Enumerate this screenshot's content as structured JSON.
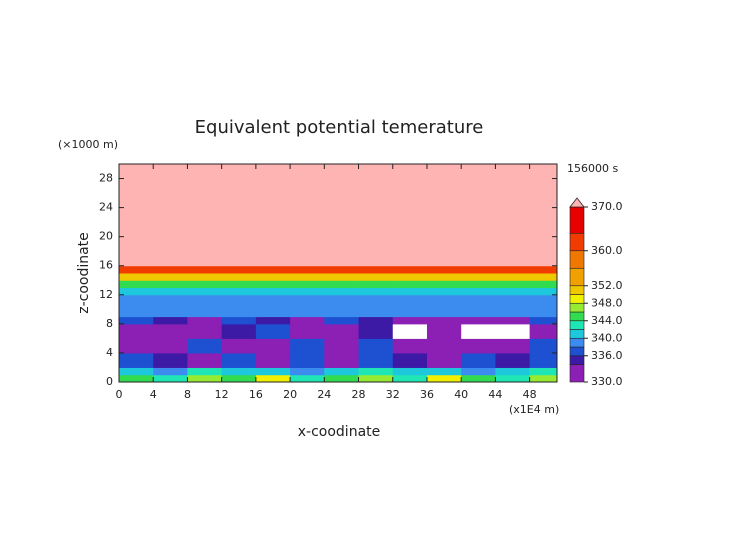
{
  "chart_data": {
    "type": "contour",
    "title": "Equivalent potential temerature",
    "x_label": "x-coodinate",
    "y_label": "z-coodinate",
    "x_unit": "(x1E4 m)",
    "y_unit": "(×1000 m)",
    "time_label": "156000 s",
    "xlim": [
      0,
      51.2
    ],
    "ylim": [
      0,
      30
    ],
    "xticks": [
      0,
      4,
      8,
      12,
      16,
      20,
      24,
      28,
      32,
      36,
      40,
      44,
      48
    ],
    "yticks": [
      0,
      4,
      8,
      12,
      16,
      20,
      24,
      28
    ],
    "field": {
      "x_edges": [
        0,
        4,
        8,
        12,
        16,
        20,
        24,
        28,
        32,
        36,
        40,
        44,
        48,
        51.2
      ],
      "z_edges": [
        0,
        1,
        2,
        4,
        6,
        8,
        9,
        10,
        12,
        13,
        14,
        15,
        16,
        30
      ],
      "values": [
        [
          344,
          342,
          346,
          344,
          348,
          342,
          344,
          346,
          342,
          348,
          344,
          342,
          346
        ],
        [
          340,
          338,
          342,
          340,
          340,
          338,
          340,
          342,
          340,
          340,
          338,
          340,
          342
        ],
        [
          337,
          335,
          333,
          337,
          332,
          336,
          331,
          337,
          335,
          332,
          337,
          334,
          336
        ],
        [
          331,
          333,
          337,
          332,
          331,
          337,
          333,
          336,
          332,
          331,
          333,
          332,
          337
        ],
        [
          333,
          331,
          332,
          335,
          337,
          333,
          331,
          334,
          329,
          331,
          328,
          327,
          333
        ],
        [
          337,
          334,
          333,
          336,
          335,
          333,
          337,
          334,
          333,
          331,
          333,
          332,
          337
        ],
        [
          338,
          339,
          338,
          339,
          338,
          339,
          338,
          338,
          339,
          338,
          339,
          338,
          339
        ],
        [
          339,
          339,
          339,
          339,
          339,
          339,
          339,
          339,
          339,
          339,
          339,
          339,
          339
        ],
        [
          341,
          341,
          341,
          341,
          341,
          341,
          341,
          341,
          341,
          341,
          341,
          341,
          341
        ],
        [
          345,
          345,
          345,
          345,
          345,
          345,
          345,
          345,
          345,
          345,
          345,
          345,
          345
        ],
        [
          351,
          351,
          351,
          351,
          351,
          351,
          351,
          351,
          351,
          351,
          351,
          351,
          351
        ],
        [
          362,
          362,
          362,
          362,
          362,
          362,
          362,
          362,
          362,
          362,
          362,
          362,
          362
        ],
        [
          372,
          372,
          372,
          372,
          372,
          372,
          372,
          372,
          372,
          372,
          372,
          372,
          372
        ]
      ]
    },
    "colorbar": {
      "clim": [
        330,
        370
      ],
      "levels": [
        330,
        334,
        336,
        338,
        340,
        342,
        344,
        346,
        348,
        350,
        352,
        356,
        360,
        364,
        370
      ],
      "colors": [
        "#8c1fb4",
        "#3c1aa6",
        "#1e50d2",
        "#3c8cf0",
        "#1ec8dc",
        "#1ee6b4",
        "#32dc50",
        "#96eb32",
        "#f0f000",
        "#f0c800",
        "#f0a000",
        "#f07800",
        "#f03c00",
        "#e60000"
      ],
      "over_color": "#ffb4b4",
      "under_color": "#ffffff",
      "ticks": [
        {
          "value": 330,
          "label": "330.0"
        },
        {
          "value": 336,
          "label": "336.0"
        },
        {
          "value": 340,
          "label": "340.0"
        },
        {
          "value": 344,
          "label": "344.0"
        },
        {
          "value": 348,
          "label": "348.0"
        },
        {
          "value": 352,
          "label": "352.0"
        },
        {
          "value": 360,
          "label": "360.0"
        },
        {
          "value": 370,
          "label": "370.0"
        }
      ]
    }
  }
}
